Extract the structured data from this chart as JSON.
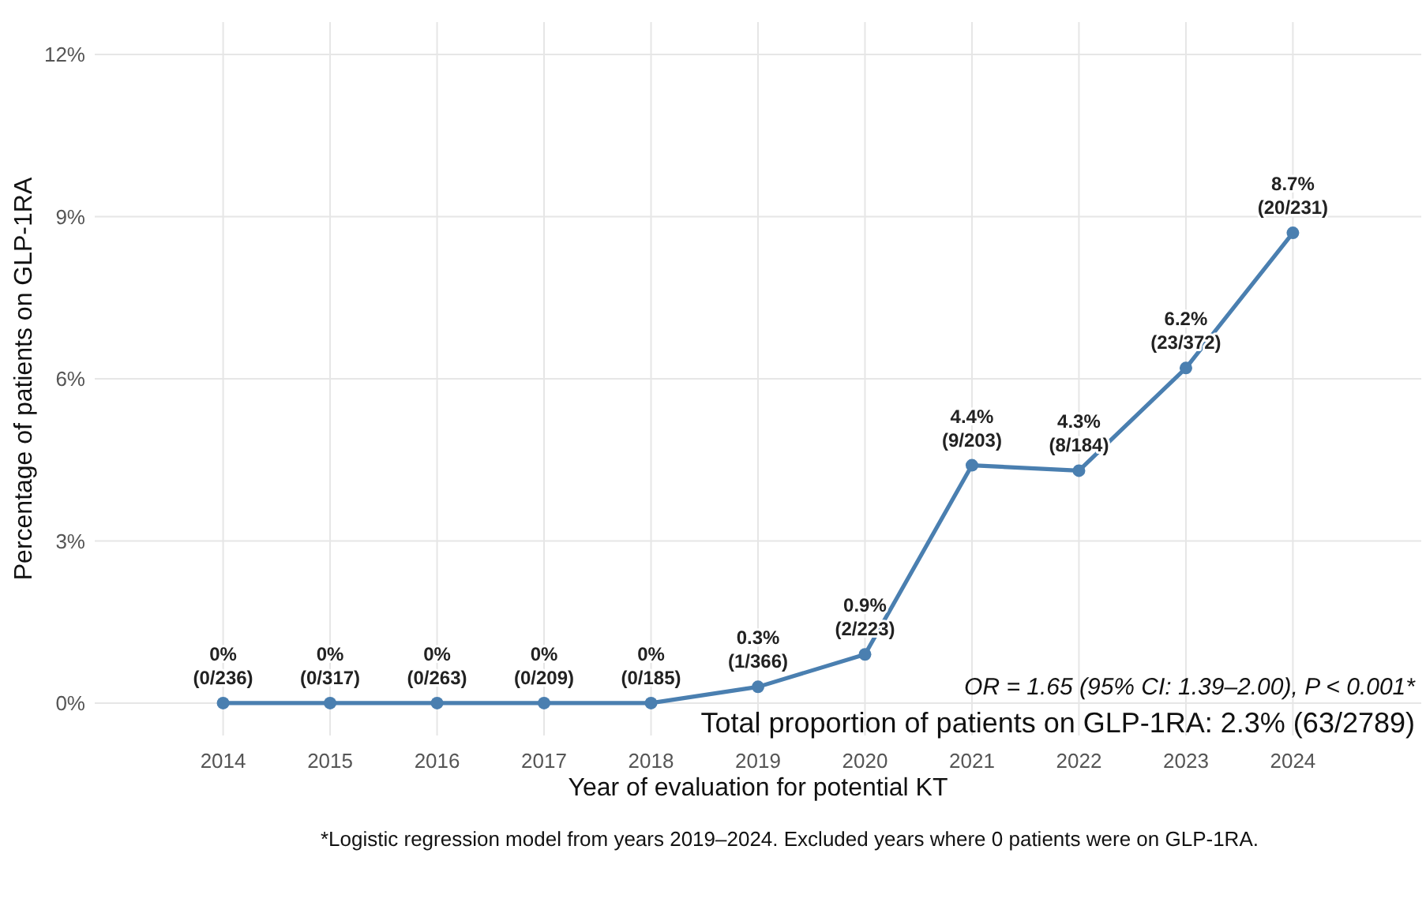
{
  "chart_data": {
    "type": "line",
    "xlabel": "Year of evaluation for potential KT",
    "ylabel": "Percentage of patients on GLP-1RA",
    "categories": [
      "2014",
      "2015",
      "2016",
      "2017",
      "2018",
      "2019",
      "2020",
      "2021",
      "2022",
      "2023",
      "2024"
    ],
    "series": [
      {
        "color": "#4a7fb0",
        "values": [
          0,
          0,
          0,
          0,
          0,
          0.3,
          0.9,
          4.4,
          4.3,
          6.2,
          8.7
        ],
        "value_labels": [
          "0%\n(0/236)",
          "0%\n(0/317)",
          "0%\n(0/263)",
          "0%\n(0/209)",
          "0%\n(0/185)",
          "0.3%\n(1/366)",
          "0.9%\n(2/223)",
          "4.4%\n(9/203)",
          "4.3%\n(8/184)",
          "6.2%\n(23/372)",
          "8.7%\n(20/231)"
        ]
      }
    ],
    "ylim": [
      -0.6,
      12.6
    ],
    "yticks": [
      {
        "value": 0,
        "label": "0%"
      },
      {
        "value": 3,
        "label": "3%"
      },
      {
        "value": 6,
        "label": "6%"
      },
      {
        "value": 9,
        "label": "9%"
      },
      {
        "value": 12,
        "label": "12%"
      }
    ],
    "grid": true,
    "marker": "circle",
    "line_style": "solid",
    "annotations": [
      "OR = 1.65 (95% CI: 1.39–2.00), P < 0.001*",
      "Total proportion of patients on GLP-1RA: 2.3% (63/2789)",
      "*Logistic regression model from years 2019–2024. Excluded years where 0 patients were on GLP-1RA."
    ]
  }
}
